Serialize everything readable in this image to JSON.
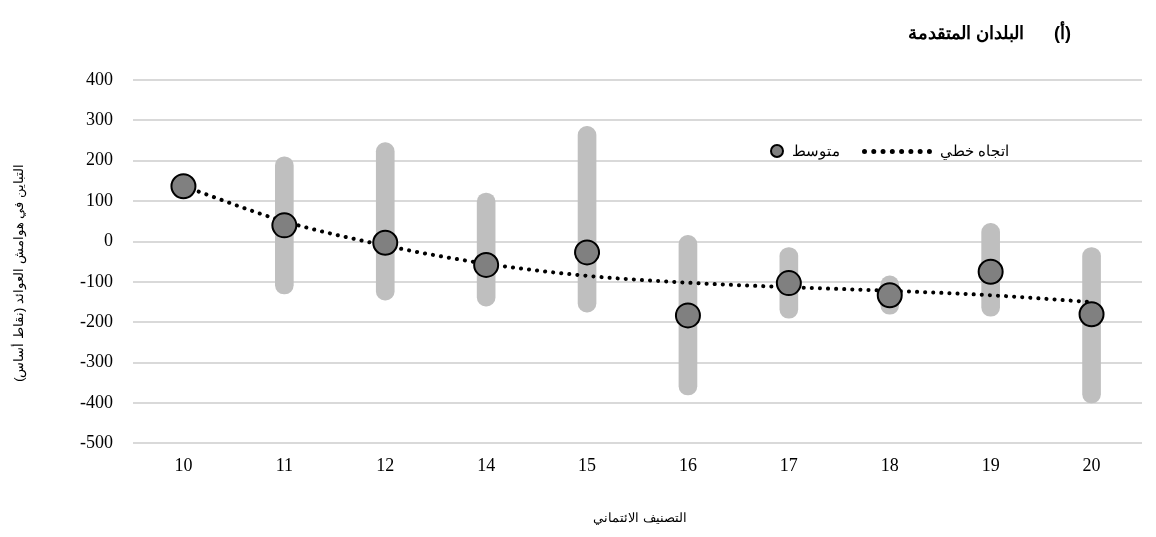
{
  "chart_data": {
    "type": "bar",
    "title": "(أ)      البلدان المتقدمة",
    "xlabel": "التصنيف الائتماني",
    "ylabel": "التباين في هوامش العوائد (نقاط أساس)",
    "categories": [
      "10",
      "11",
      "12",
      "14",
      "15",
      "16",
      "17",
      "18",
      "19",
      "20"
    ],
    "ylim": [
      -500,
      400
    ],
    "yticks": [
      -500,
      -400,
      -300,
      -200,
      -100,
      0,
      100,
      200,
      300,
      400
    ],
    "grid": "y",
    "legend": "top right",
    "series": [
      {
        "color": "#bfbfbf",
        "base": [
          null,
          -130,
          -145,
          -160,
          -175,
          -380,
          -190,
          -180,
          -185,
          -400
        ],
        "values": [
          null,
          340,
          390,
          280,
          460,
          395,
          175,
          95,
          230,
          385
        ]
      },
      {
        "type": "scatter",
        "name": "متوسط",
        "color": "#808080",
        "marker": "circle",
        "values": [
          137,
          40,
          -3,
          -58,
          -27,
          -183,
          -103,
          -133,
          -75,
          -180
        ]
      },
      {
        "type": "line",
        "name": "اتجاه خطي",
        "color": "#000000",
        "marker": "none",
        "line_style": "dotted",
        "values": [
          137,
          50,
          -10,
          -55,
          -85,
          -102,
          -113,
          -122,
          -133,
          -150
        ]
      }
    ]
  }
}
